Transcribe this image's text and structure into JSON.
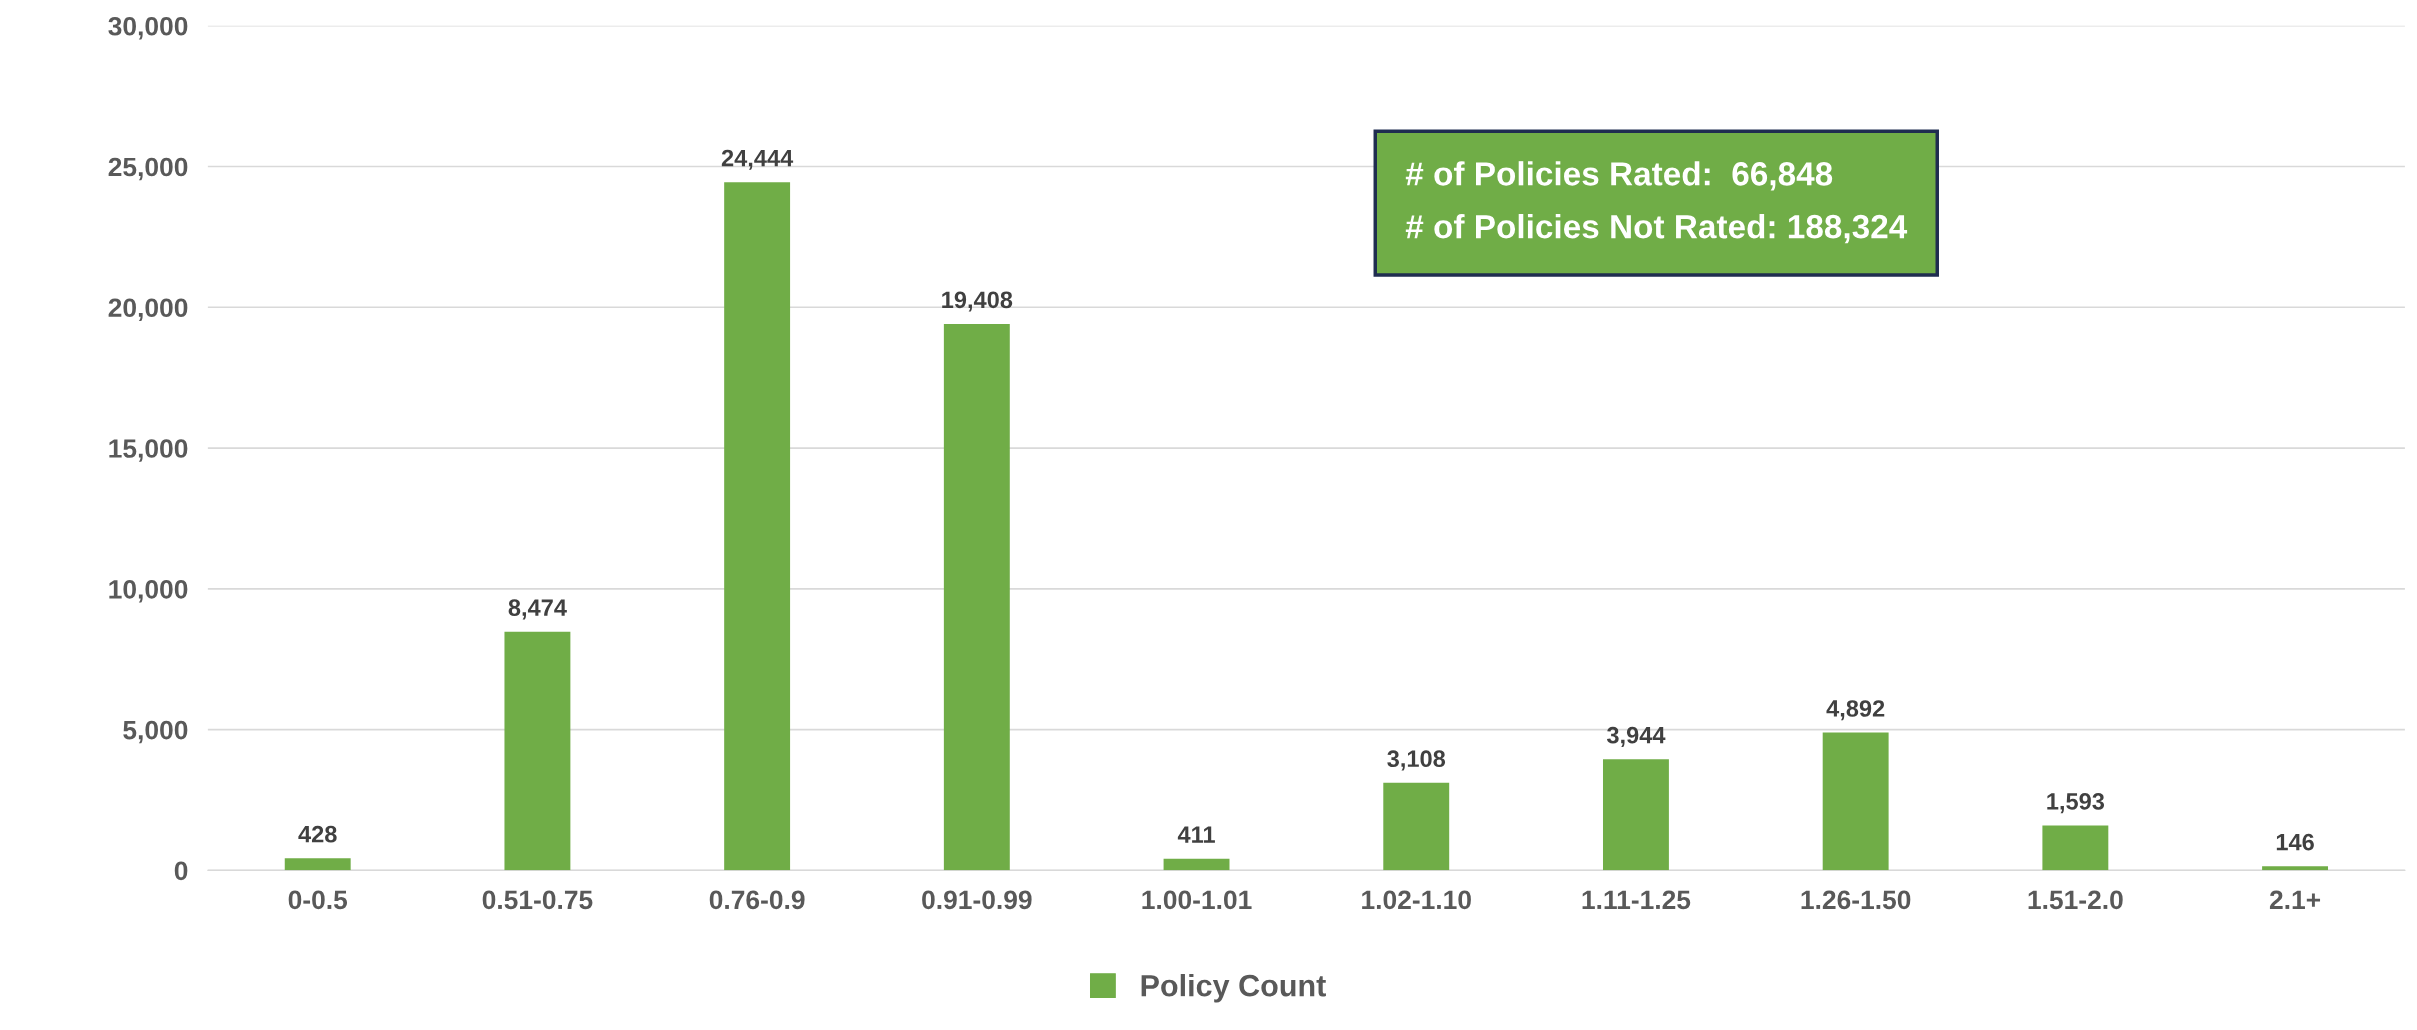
{
  "chart_data": {
    "type": "bar",
    "categories": [
      "0-0.5",
      "0.51-0.75",
      "0.76-0.9",
      "0.91-0.99",
      "1.00-1.01",
      "1.02-1.10",
      "1.11-1.25",
      "1.26-1.50",
      "1.51-2.0",
      "2.1+"
    ],
    "series": [
      {
        "name": "Policy Count",
        "color": "#70ad47",
        "values": [
          428,
          8474,
          24444,
          19408,
          411,
          3108,
          3944,
          4892,
          1593,
          146
        ]
      }
    ],
    "ylim": [
      0,
      30000
    ],
    "yticks": [
      {
        "value": 0,
        "label": "0"
      },
      {
        "value": 5000,
        "label": "5,000"
      },
      {
        "value": 10000,
        "label": "10,000"
      },
      {
        "value": 15000,
        "label": "15,000"
      },
      {
        "value": 20000,
        "label": "20,000"
      },
      {
        "value": 25000,
        "label": "25,000"
      },
      {
        "value": 30000,
        "label": "30,000"
      }
    ],
    "value_labels": [
      "428",
      "8,474",
      "24,444",
      "19,408",
      "411",
      "3,108",
      "3,944",
      "4,892",
      "1,593",
      "146"
    ],
    "annotations": [
      "# of Policies Rated:  66,848",
      "# of Policies Not Rated: 188,324"
    ],
    "grid": "y",
    "legend": "bottom"
  }
}
